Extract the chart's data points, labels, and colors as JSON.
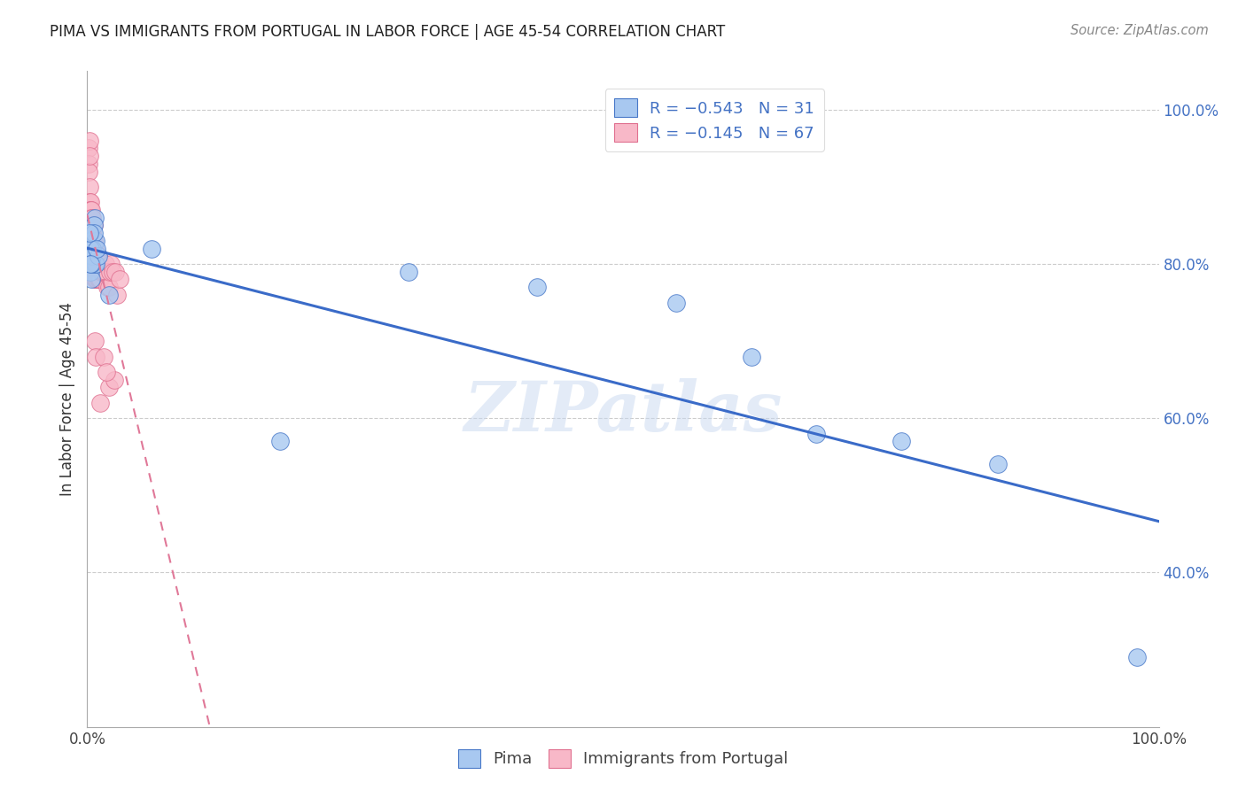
{
  "title": "PIMA VS IMMIGRANTS FROM PORTUGAL IN LABOR FORCE | AGE 45-54 CORRELATION CHART",
  "source": "Source: ZipAtlas.com",
  "ylabel": "In Labor Force | Age 45-54",
  "legend_blue_r": "-0.543",
  "legend_blue_n": "31",
  "legend_pink_r": "-0.145",
  "legend_pink_n": "67",
  "legend_blue_label": "Pima",
  "legend_pink_label": "Immigrants from Portugal",
  "watermark": "ZIPatlas",
  "blue_fill": "#A8C8F0",
  "blue_edge": "#4878C8",
  "pink_fill": "#F8B8C8",
  "pink_edge": "#E07090",
  "blue_line_color": "#3A6BC8",
  "pink_line_color": "#E07898",
  "blue_scatter_x": [
    0.003,
    0.005,
    0.007,
    0.004,
    0.002,
    0.006,
    0.008,
    0.003,
    0.005,
    0.004,
    0.007,
    0.006,
    0.003,
    0.002,
    0.008,
    0.005,
    0.004,
    0.01,
    0.009,
    0.003,
    0.02,
    0.06,
    0.18,
    0.3,
    0.42,
    0.55,
    0.62,
    0.68,
    0.76,
    0.85,
    0.98
  ],
  "blue_scatter_y": [
    0.84,
    0.82,
    0.86,
    0.8,
    0.83,
    0.85,
    0.83,
    0.79,
    0.82,
    0.78,
    0.8,
    0.84,
    0.82,
    0.84,
    0.8,
    0.81,
    0.8,
    0.81,
    0.82,
    0.8,
    0.76,
    0.82,
    0.57,
    0.79,
    0.77,
    0.75,
    0.68,
    0.58,
    0.57,
    0.54,
    0.29
  ],
  "pink_scatter_x": [
    0.001,
    0.001,
    0.001,
    0.001,
    0.001,
    0.002,
    0.002,
    0.002,
    0.002,
    0.002,
    0.003,
    0.003,
    0.003,
    0.003,
    0.003,
    0.004,
    0.004,
    0.004,
    0.004,
    0.004,
    0.005,
    0.005,
    0.005,
    0.005,
    0.005,
    0.006,
    0.006,
    0.006,
    0.006,
    0.007,
    0.007,
    0.007,
    0.007,
    0.008,
    0.008,
    0.008,
    0.009,
    0.009,
    0.009,
    0.01,
    0.01,
    0.01,
    0.011,
    0.011,
    0.012,
    0.012,
    0.013,
    0.014,
    0.015,
    0.016,
    0.017,
    0.018,
    0.019,
    0.02,
    0.021,
    0.022,
    0.024,
    0.026,
    0.028,
    0.03,
    0.007,
    0.008,
    0.015,
    0.02,
    0.025,
    0.018,
    0.012
  ],
  "pink_scatter_y": [
    0.95,
    0.93,
    0.92,
    0.86,
    0.86,
    0.96,
    0.94,
    0.9,
    0.88,
    0.85,
    0.88,
    0.87,
    0.87,
    0.85,
    0.84,
    0.87,
    0.86,
    0.84,
    0.83,
    0.84,
    0.86,
    0.84,
    0.83,
    0.82,
    0.8,
    0.85,
    0.83,
    0.81,
    0.8,
    0.82,
    0.8,
    0.79,
    0.78,
    0.81,
    0.79,
    0.78,
    0.8,
    0.79,
    0.78,
    0.81,
    0.79,
    0.78,
    0.8,
    0.78,
    0.8,
    0.78,
    0.79,
    0.79,
    0.79,
    0.79,
    0.8,
    0.79,
    0.77,
    0.77,
    0.79,
    0.8,
    0.79,
    0.79,
    0.76,
    0.78,
    0.7,
    0.68,
    0.68,
    0.64,
    0.65,
    0.66,
    0.62
  ],
  "xlim": [
    0.0,
    1.0
  ],
  "ylim": [
    0.2,
    1.05
  ],
  "yticks": [
    0.4,
    0.6,
    0.8,
    1.0
  ],
  "xticks": [
    0.0,
    0.25,
    0.5,
    0.75,
    1.0
  ],
  "figsize": [
    14.06,
    8.92
  ],
  "dpi": 100
}
